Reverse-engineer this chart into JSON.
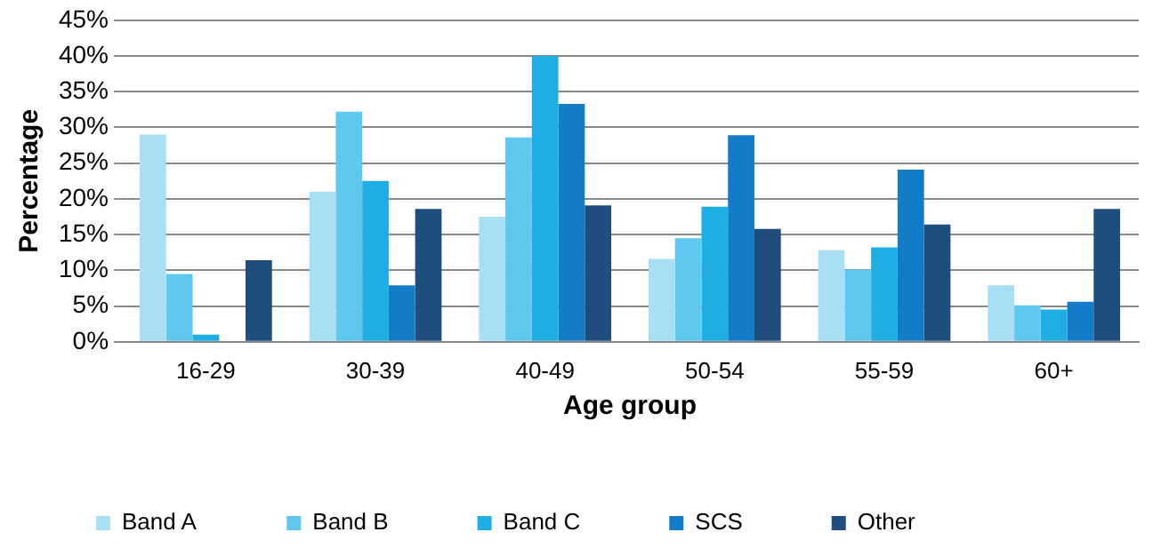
{
  "chart_data": {
    "type": "bar",
    "xlabel": "Age group",
    "ylabel": "Percentage",
    "categories": [
      "16-29",
      "30-39",
      "40-49",
      "50-54",
      "55-59",
      "60+"
    ],
    "series": [
      {
        "name": "Band A",
        "color": "#a9dff5",
        "values": [
          29.0,
          21.0,
          17.5,
          11.6,
          12.8,
          7.9
        ]
      },
      {
        "name": "Band B",
        "color": "#5fc8ee",
        "values": [
          9.5,
          32.2,
          28.6,
          14.5,
          10.1,
          5.1
        ]
      },
      {
        "name": "Band C",
        "color": "#1eaee4",
        "values": [
          1.0,
          22.5,
          40.0,
          18.9,
          13.2,
          4.5
        ]
      },
      {
        "name": "SCS",
        "color": "#137cc8",
        "values": [
          0,
          7.9,
          33.3,
          28.9,
          24.1,
          5.6
        ]
      },
      {
        "name": "Other",
        "color": "#1f4e7e",
        "values": [
          11.4,
          18.6,
          19.1,
          15.8,
          16.4,
          18.6
        ]
      }
    ],
    "ylim": [
      0,
      45
    ],
    "yticks": [
      {
        "value": 0,
        "label": "0%"
      },
      {
        "value": 5,
        "label": "5%"
      },
      {
        "value": 10,
        "label": "10%"
      },
      {
        "value": 15,
        "label": "15%"
      },
      {
        "value": 20,
        "label": "20%"
      },
      {
        "value": 25,
        "label": "25%"
      },
      {
        "value": 30,
        "label": "30%"
      },
      {
        "value": 35,
        "label": "35%"
      },
      {
        "value": 40,
        "label": "40%"
      },
      {
        "value": 45,
        "label": "45%"
      }
    ],
    "grid": "y",
    "legend": "bottom"
  }
}
